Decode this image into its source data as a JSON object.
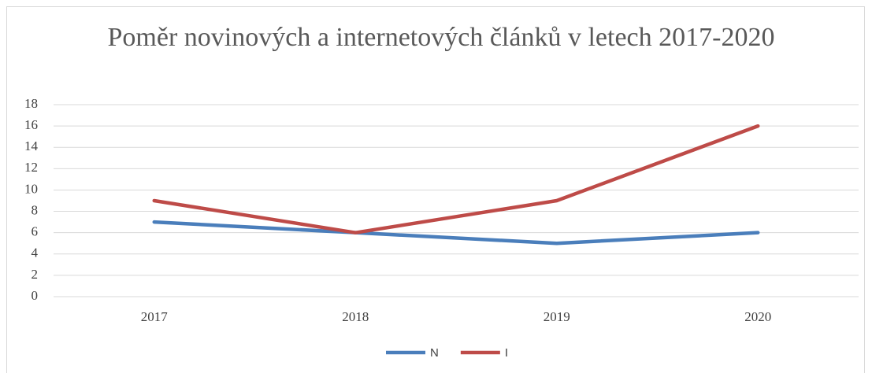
{
  "chart_data": {
    "type": "line",
    "title": "Poměr novinových a internetových článků v letech 2017-2020",
    "categories": [
      "2017",
      "2018",
      "2019",
      "2020"
    ],
    "series": [
      {
        "name": "N",
        "color": "#4a7ebb",
        "values": [
          7,
          6,
          5,
          6
        ]
      },
      {
        "name": "I",
        "color": "#be4b48",
        "values": [
          9,
          6,
          9,
          16
        ]
      }
    ],
    "ylim": [
      0,
      18
    ],
    "yticks": [
      0,
      2,
      4,
      6,
      8,
      10,
      12,
      14,
      16,
      18
    ],
    "grid": true,
    "legend": "bottom"
  }
}
